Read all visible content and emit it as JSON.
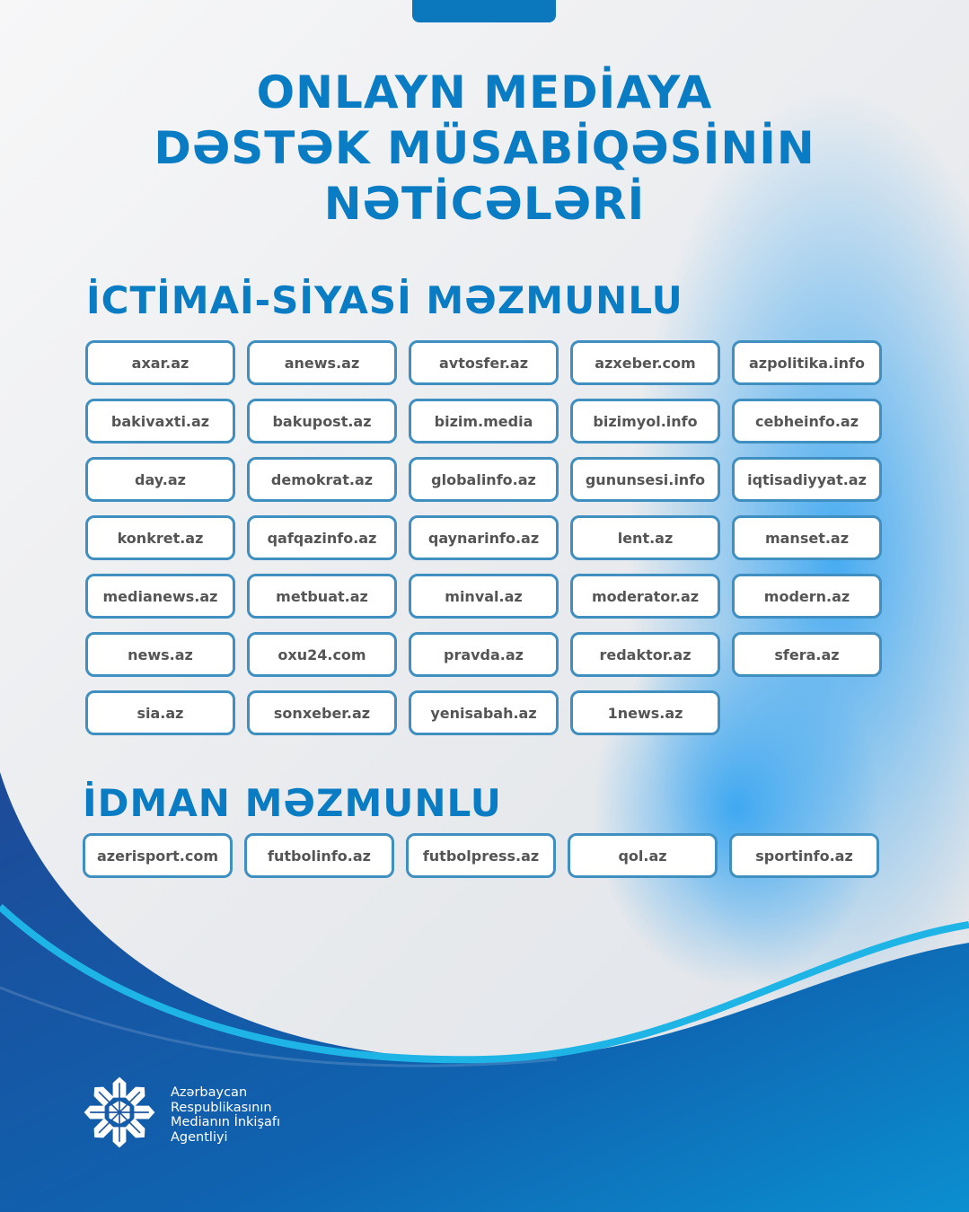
{
  "title": {
    "line1": "ONLAYN MEDİAYA",
    "line2": "DƏSTƏK MÜSABİQƏSİNİN",
    "line3": "NƏTİCƏLƏRİ"
  },
  "sections": [
    {
      "heading": "İCTİMAİ-SİYASİ MƏZMUNLU",
      "items": [
        "axar.az",
        "anews.az",
        "avtosfer.az",
        "azxeber.com",
        "azpolitika.info",
        "bakivaxti.az",
        "bakupost.az",
        "bizim.media",
        "bizimyol.info",
        "cebheinfo.az",
        "day.az",
        "demokrat.az",
        "globalinfo.az",
        "gununsesi.info",
        "iqtisadiyyat.az",
        "konkret.az",
        "qafqazinfo.az",
        "qaynarinfo.az",
        "lent.az",
        "manset.az",
        "medianews.az",
        "metbuat.az",
        "minval.az",
        "moderator.az",
        "modern.az",
        "news.az",
        "oxu24.com",
        "pravda.az",
        "redaktor.az",
        "sfera.az",
        "sia.az",
        "sonxeber.az",
        "yenisabah.az",
        "1news.az"
      ]
    },
    {
      "heading": "İDMAN MƏZMUNLU",
      "items": [
        "azerisport.com",
        "futbolinfo.az",
        "futbolpress.az",
        "qol.az",
        "sportinfo.az"
      ]
    }
  ],
  "footer": {
    "org_lines": [
      "Azərbaycan",
      "Respublikasının",
      "Medianın İnkişafı",
      "Agentliyi"
    ]
  },
  "colors": {
    "accent": "#0a7cc3",
    "chip_border": "#3f8fc0",
    "chip_text": "#555555",
    "wave_dark": "#1a4f9c",
    "wave_light": "#1fb4e6"
  }
}
